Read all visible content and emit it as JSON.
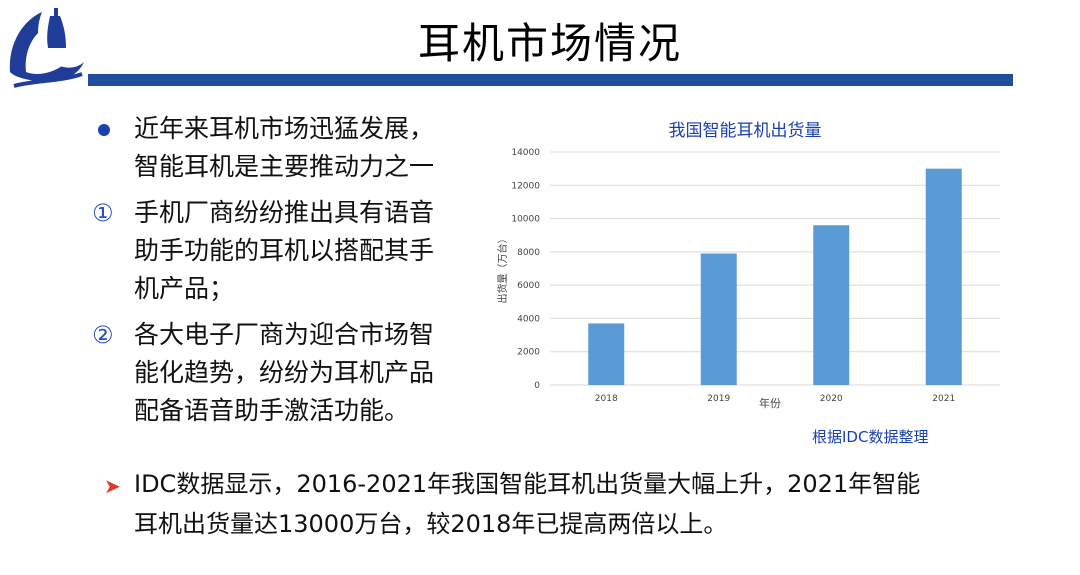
{
  "header": {
    "title": "耳机市场情况"
  },
  "bullets": [
    {
      "marker": "●",
      "lines": [
        "近年来耳机市场迅猛发展，",
        "智能耳机是主要推动力之一"
      ]
    },
    {
      "marker": "①",
      "lines": [
        "手机厂商纷纷推出具有语音",
        "助手功能的耳机以搭配其手",
        "机产品；"
      ]
    },
    {
      "marker": "②",
      "lines": [
        "各大电子厂商为迎合市场智",
        "能化趋势，纷纷为耳机产品",
        "配备语音助手激活功能。"
      ]
    }
  ],
  "source_note": "根据IDC数据整理",
  "footer": {
    "lines": [
      "IDC数据显示，2016-2021年我国智能耳机出货量大幅上升，2021年智能",
      "耳机出货量达13000万台，较2018年已提高两倍以上。"
    ]
  },
  "colors": {
    "bar": "#5b9bd5",
    "accent": "#1a3fb0",
    "title_bar": "#1f4e9c",
    "arrow": "#e03a2a"
  },
  "chart_data": {
    "type": "bar",
    "title": "我国智能耳机出货量",
    "xlabel": "年份",
    "ylabel": "出货量（万台）",
    "categories": [
      "2018",
      "2019",
      "2020",
      "2021"
    ],
    "values": [
      3700,
      7900,
      9600,
      13000
    ],
    "ylim": [
      0,
      14000
    ],
    "yticks": [
      0,
      2000,
      4000,
      6000,
      8000,
      10000,
      12000,
      14000
    ],
    "grid": true,
    "legend": "none"
  }
}
